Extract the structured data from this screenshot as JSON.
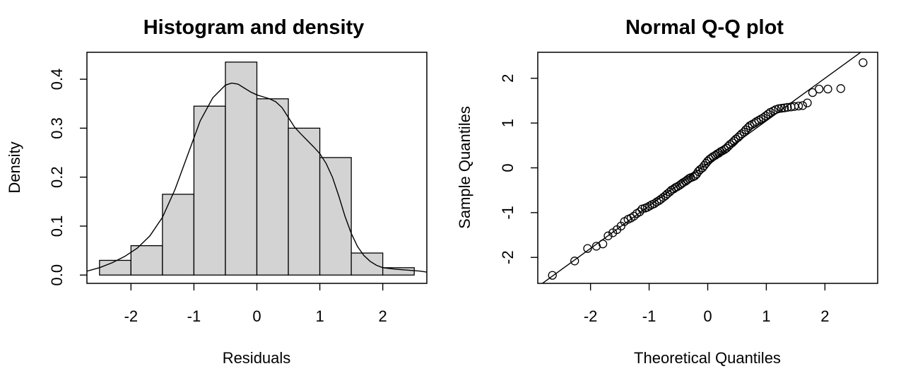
{
  "chart_data": [
    {
      "type": "bar",
      "subtype": "histogram-with-density",
      "title": "Histogram and density",
      "xlabel": "Residuals",
      "ylabel": "Density",
      "xlim": [
        -2.7,
        2.7
      ],
      "ylim": [
        -0.017,
        0.455
      ],
      "x_ticks": [
        -2,
        -1,
        0,
        1,
        2
      ],
      "y_ticks": [
        0.0,
        0.1,
        0.2,
        0.3,
        0.4
      ],
      "y_tick_labels": [
        "0.0",
        "0.1",
        "0.2",
        "0.3",
        "0.4"
      ],
      "bins": [
        {
          "start": -2.5,
          "end": -2.0,
          "density": 0.03
        },
        {
          "start": -2.0,
          "end": -1.5,
          "density": 0.06
        },
        {
          "start": -1.5,
          "end": -1.0,
          "density": 0.165
        },
        {
          "start": -1.0,
          "end": -0.5,
          "density": 0.345
        },
        {
          "start": -0.5,
          "end": 0.0,
          "density": 0.435
        },
        {
          "start": 0.0,
          "end": 0.5,
          "density": 0.36
        },
        {
          "start": 0.5,
          "end": 1.0,
          "density": 0.3
        },
        {
          "start": 1.0,
          "end": 1.5,
          "density": 0.24
        },
        {
          "start": 1.5,
          "end": 2.0,
          "density": 0.045
        },
        {
          "start": 2.0,
          "end": 2.5,
          "density": 0.015
        }
      ],
      "density_curve": {
        "x": [
          -2.7,
          -2.5,
          -2.3,
          -2.1,
          -1.9,
          -1.7,
          -1.5,
          -1.3,
          -1.1,
          -0.9,
          -0.7,
          -0.5,
          -0.4,
          -0.3,
          -0.2,
          -0.1,
          0.0,
          0.1,
          0.2,
          0.3,
          0.4,
          0.5,
          0.6,
          0.7,
          0.8,
          0.9,
          1.0,
          1.1,
          1.2,
          1.3,
          1.4,
          1.5,
          1.6,
          1.7,
          1.8,
          1.9,
          2.0,
          2.2,
          2.4,
          2.6,
          2.7
        ],
        "y": [
          0.008,
          0.015,
          0.025,
          0.038,
          0.055,
          0.08,
          0.118,
          0.175,
          0.245,
          0.315,
          0.362,
          0.388,
          0.392,
          0.39,
          0.382,
          0.374,
          0.368,
          0.364,
          0.36,
          0.354,
          0.342,
          0.322,
          0.302,
          0.288,
          0.275,
          0.262,
          0.248,
          0.228,
          0.2,
          0.162,
          0.12,
          0.085,
          0.058,
          0.04,
          0.028,
          0.02,
          0.015,
          0.012,
          0.01,
          0.008,
          0.006
        ]
      },
      "grid": false,
      "legend": "none"
    },
    {
      "type": "scatter",
      "subtype": "normal-qq",
      "title": "Normal Q-Q plot",
      "xlabel": "Theoretical Quantiles",
      "ylabel": "Sample Quantiles",
      "xlim": [
        -2.9,
        2.9
      ],
      "ylim": [
        -2.58,
        2.58
      ],
      "x_ticks": [
        -2,
        -1,
        0,
        1,
        2
      ],
      "y_ticks": [
        -2,
        -1,
        0,
        1,
        2
      ],
      "reference_line": {
        "intercept": 0.1,
        "slope": 0.95
      },
      "points": {
        "x": [
          -2.65,
          -2.27,
          -2.05,
          -1.9,
          -1.79,
          -1.7,
          -1.62,
          -1.55,
          -1.48,
          -1.42,
          -1.36,
          -1.31,
          -1.26,
          -1.21,
          -1.16,
          -1.12,
          -1.07,
          -1.03,
          -0.99,
          -0.95,
          -0.91,
          -0.87,
          -0.83,
          -0.8,
          -0.76,
          -0.72,
          -0.69,
          -0.65,
          -0.62,
          -0.58,
          -0.55,
          -0.52,
          -0.48,
          -0.45,
          -0.42,
          -0.38,
          -0.35,
          -0.32,
          -0.29,
          -0.25,
          -0.22,
          -0.19,
          -0.16,
          -0.13,
          -0.09,
          -0.06,
          -0.03,
          0.0,
          0.03,
          0.06,
          0.09,
          0.13,
          0.16,
          0.19,
          0.22,
          0.25,
          0.29,
          0.32,
          0.35,
          0.38,
          0.42,
          0.45,
          0.48,
          0.52,
          0.55,
          0.58,
          0.62,
          0.65,
          0.69,
          0.72,
          0.76,
          0.8,
          0.83,
          0.87,
          0.91,
          0.95,
          0.99,
          1.03,
          1.07,
          1.12,
          1.16,
          1.21,
          1.26,
          1.31,
          1.36,
          1.42,
          1.48,
          1.55,
          1.62,
          1.7,
          1.79,
          1.9,
          2.05,
          2.27,
          2.65
        ],
        "y": [
          -2.4,
          -2.08,
          -1.8,
          -1.75,
          -1.7,
          -1.52,
          -1.45,
          -1.38,
          -1.3,
          -1.2,
          -1.15,
          -1.12,
          -1.08,
          -1.02,
          -0.98,
          -0.92,
          -0.9,
          -0.88,
          -0.85,
          -0.82,
          -0.8,
          -0.76,
          -0.73,
          -0.7,
          -0.66,
          -0.62,
          -0.58,
          -0.54,
          -0.5,
          -0.47,
          -0.44,
          -0.42,
          -0.39,
          -0.36,
          -0.33,
          -0.3,
          -0.27,
          -0.24,
          -0.22,
          -0.2,
          -0.18,
          -0.14,
          -0.08,
          -0.04,
          0.0,
          0.05,
          0.1,
          0.15,
          0.19,
          0.22,
          0.25,
          0.28,
          0.31,
          0.33,
          0.36,
          0.38,
          0.41,
          0.44,
          0.48,
          0.52,
          0.56,
          0.6,
          0.64,
          0.68,
          0.72,
          0.76,
          0.8,
          0.85,
          0.9,
          0.94,
          0.97,
          1.0,
          1.03,
          1.06,
          1.09,
          1.12,
          1.16,
          1.2,
          1.24,
          1.27,
          1.3,
          1.32,
          1.33,
          1.34,
          1.35,
          1.36,
          1.37,
          1.38,
          1.39,
          1.45,
          1.68,
          1.76,
          1.76,
          1.77,
          2.35
        ]
      },
      "grid": false,
      "legend": "none"
    }
  ]
}
